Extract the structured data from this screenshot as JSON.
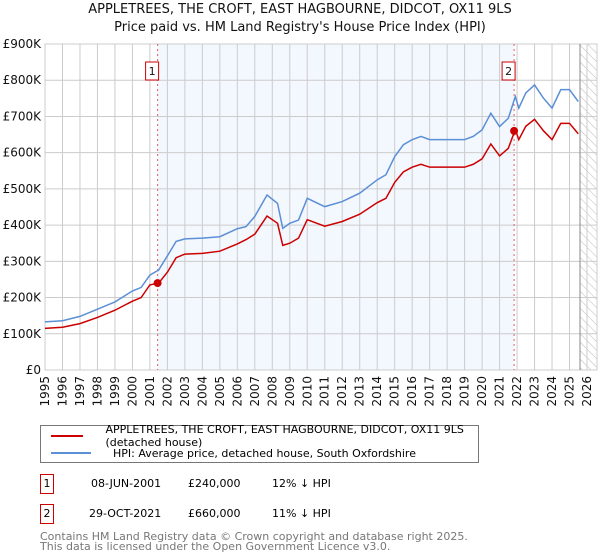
{
  "chart_data": {
    "type": "line",
    "title": "APPLETREES, THE CROFT, EAST HAGBOURNE, DIDCOT, OX11 9LS",
    "subtitle": "Price paid vs. HM Land Registry's House Price Index (HPI)",
    "xlim": [
      1995,
      2026
    ],
    "ylim": [
      0,
      900000
    ],
    "x_ticks": [
      "1995",
      "1996",
      "1997",
      "1998",
      "1999",
      "2000",
      "2001",
      "2002",
      "2003",
      "2004",
      "2005",
      "2006",
      "2007",
      "2008",
      "2009",
      "2010",
      "2011",
      "2012",
      "2013",
      "2014",
      "2015",
      "2016",
      "2017",
      "2018",
      "2019",
      "2020",
      "2021",
      "2022",
      "2023",
      "2024",
      "2025",
      "2026"
    ],
    "y_ticks": [
      {
        "v": 0,
        "label": "£0"
      },
      {
        "v": 100000,
        "label": "£100K"
      },
      {
        "v": 200000,
        "label": "£200K"
      },
      {
        "v": 300000,
        "label": "£300K"
      },
      {
        "v": 400000,
        "label": "£400K"
      },
      {
        "v": 500000,
        "label": "£500K"
      },
      {
        "v": 600000,
        "label": "£600K"
      },
      {
        "v": 700000,
        "label": "£700K"
      },
      {
        "v": 800000,
        "label": "£800K"
      },
      {
        "v": 900000,
        "label": "£900K"
      }
    ],
    "grid": true,
    "x": [
      1995,
      1996,
      1997,
      1998,
      1999,
      2000,
      2000.5,
      2001,
      2001.5,
      2002,
      2002.5,
      2003,
      2004,
      2005,
      2006,
      2006.5,
      2007,
      2007.7,
      2008.3,
      2008.6,
      2009,
      2009.5,
      2010,
      2011,
      2012,
      2013,
      2014,
      2014.5,
      2015,
      2015.5,
      2016,
      2016.5,
      2017,
      2018,
      2019,
      2019.5,
      2020,
      2020.5,
      2021,
      2021.5,
      2021.9,
      2022.1,
      2022.5,
      2023,
      2023.5,
      2024,
      2024.5,
      2025,
      2025.5
    ],
    "series": [
      {
        "name": "APPLETREES, THE CROFT, EAST HAGBOURNE, DIDCOT, OX11 9LS (detached house)",
        "color": "#cc0000",
        "values": [
          115,
          118,
          128,
          145,
          165,
          190,
          200,
          235,
          240,
          270,
          310,
          320,
          322,
          328,
          348,
          360,
          375,
          425,
          405,
          344,
          350,
          364,
          415,
          397,
          410,
          430,
          462,
          474,
          518,
          547,
          560,
          568,
          560,
          560,
          560,
          568,
          583,
          624,
          591,
          612,
          664,
          636,
          673,
          692,
          661,
          636,
          681,
          681,
          652
        ]
      },
      {
        "name": "HPI: Average price, detached house, South Oxfordshire",
        "color": "#5b8fd6",
        "values": [
          133,
          136,
          148,
          168,
          188,
          218,
          228,
          262,
          276,
          315,
          355,
          362,
          364,
          368,
          390,
          396,
          424,
          483,
          460,
          391,
          405,
          414,
          474,
          451,
          465,
          488,
          525,
          539,
          589,
          622,
          636,
          645,
          636,
          636,
          636,
          645,
          663,
          709,
          672,
          695,
          755,
          723,
          765,
          787,
          751,
          723,
          774,
          774,
          741
        ]
      }
    ],
    "value_unit": "thousand GBP",
    "shaded_between": [
      2001.44,
      2021.83
    ],
    "hatched_from": 2025.6,
    "sales": [
      {
        "id": "1",
        "x": 2001.44,
        "y": 240
      },
      {
        "id": "2",
        "x": 2021.83,
        "y": 660
      }
    ]
  },
  "legend": {
    "red": "APPLETREES, THE CROFT, EAST HAGBOURNE, DIDCOT, OX11 9LS (detached house)",
    "blue": "HPI: Average price, detached house, South Oxfordshire"
  },
  "transactions": [
    {
      "id": "1",
      "date": "08-JUN-2001",
      "price": "£240,000",
      "hpi": "12% ↓ HPI"
    },
    {
      "id": "2",
      "date": "29-OCT-2021",
      "price": "£660,000",
      "hpi": "11% ↓ HPI"
    }
  ],
  "footer": {
    "line1": "Contains HM Land Registry data © Crown copyright and database right 2025.",
    "line2": "This data is licensed under the Open Government Licence v3.0."
  }
}
